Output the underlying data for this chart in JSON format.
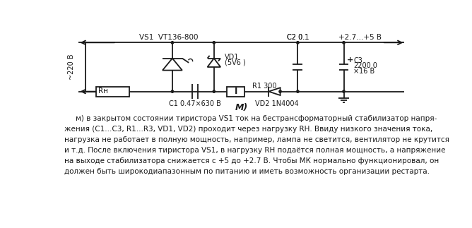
{
  "title_label": "М)",
  "label_vs1_vt": "VS1  VT136-800",
  "label_c2": "C2 0.1",
  "label_vout": "+2.7...+5 В",
  "label_220": "~220 В",
  "label_rh": "Rн",
  "label_vd1": "VD1",
  "label_vd1_val": "(5V6 )",
  "label_r1": "R1 300",
  "label_c1": "C1 0.47×630 В",
  "label_vd2": "VD2 1N4004",
  "label_c3": "C3",
  "label_c3_val": "2200.0",
  "label_c3_val2": "×16 В",
  "label_plus": "+",
  "para_line1": "м) в закрытом состоянии тиристора VS1 ток на бестрансформаторный стабилизатор напря-",
  "para_line2": "жения (C1...C3, R1...R3, VD1, VD2) проходит через нагрузку RН. Ввиду низкого значения тока,",
  "para_line3": "нагрузка не работает в полную мощность, например, лампа не светится, вентилятор не крутится",
  "para_line4": "и т.д. После включения тиристора VS1, в нагрузку RН подаётся полная мощность, а напряжение",
  "para_line5": "на выходе стабилизатора снижается с +5 до +2.7 В. Чтобы МК нормально функционировал, он",
  "para_line6": "должен быть широкодиапазонным по питанию и иметь возможность организации рестарта.",
  "bg_color": "#ffffff",
  "line_color": "#1a1a1a",
  "text_color": "#1a1a1a"
}
